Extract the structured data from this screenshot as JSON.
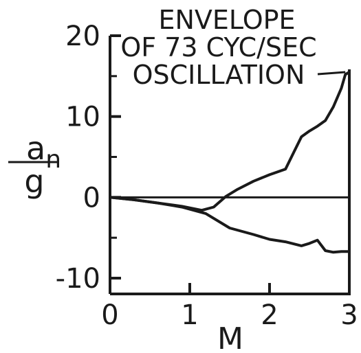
{
  "chart_data": {
    "type": "line",
    "title": "",
    "xlabel": "M",
    "ylabel": {
      "numerator": "a",
      "subscript": "n",
      "denominator": "g"
    },
    "xlim": [
      0,
      3
    ],
    "ylim": [
      -11,
      20
    ],
    "x_ticks": [
      0,
      1,
      2,
      3
    ],
    "y_ticks": [
      -10,
      0,
      10,
      20
    ],
    "x_tick_labels": [
      "0",
      "1",
      "2",
      "3"
    ],
    "y_tick_labels": [
      "-10",
      "0",
      "10",
      "20"
    ],
    "grid": false,
    "legend": "none",
    "annotation": {
      "lines": [
        "ENVELOPE",
        "OF 73 CYC/SEC",
        "OSCILLATION"
      ],
      "points_to": {
        "x": 2.95,
        "y": 15.5
      }
    },
    "series": [
      {
        "role": "upper-envelope",
        "x": [
          0,
          0.3,
          0.6,
          0.9,
          1.15,
          1.3,
          1.45,
          1.6,
          1.8,
          2.0,
          2.2,
          2.3,
          2.4,
          2.5,
          2.6,
          2.7,
          2.8,
          2.9,
          2.95,
          3.0
        ],
        "y": [
          0,
          -0.3,
          -0.7,
          -1.1,
          -1.6,
          -1.2,
          0.1,
          1.0,
          2.0,
          2.8,
          3.5,
          5.5,
          7.5,
          8.2,
          8.8,
          9.5,
          11.2,
          13.5,
          15.2,
          15.5
        ]
      },
      {
        "role": "lower-envelope",
        "x": [
          0,
          0.3,
          0.6,
          0.9,
          1.2,
          1.5,
          1.8,
          2.0,
          2.2,
          2.4,
          2.5,
          2.6,
          2.7,
          2.8,
          2.9,
          3.0
        ],
        "y": [
          0,
          -0.3,
          -0.7,
          -1.2,
          -2.0,
          -3.8,
          -4.6,
          -5.2,
          -5.5,
          -6.0,
          -5.7,
          -5.3,
          -6.6,
          -6.8,
          -6.7,
          -6.7
        ]
      }
    ]
  }
}
